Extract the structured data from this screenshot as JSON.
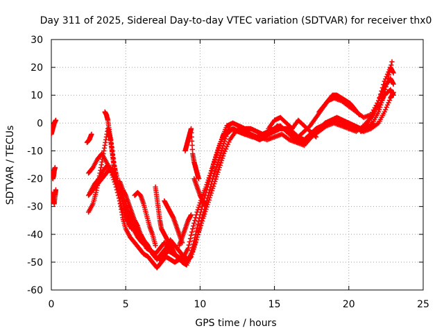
{
  "chart_data": {
    "type": "scatter",
    "title": "Day 311 of 2025, Sidereal Day-to-day VTEC variation (SDTVAR) for receiver thx0",
    "xlabel": "GPS time / hours",
    "ylabel": "SDTVAR / TECUs",
    "xlim": [
      0,
      25
    ],
    "ylim": [
      -60,
      30
    ],
    "xticks": [
      0,
      5,
      10,
      15,
      20,
      25
    ],
    "yticks": [
      -60,
      -50,
      -40,
      -30,
      -20,
      -10,
      0,
      10,
      20,
      30
    ],
    "grid": true,
    "marker": "plus",
    "color": "#ff0000",
    "series": [
      {
        "x": [
          0.0,
          0.1,
          0.2,
          0.3
        ],
        "y": [
          -4,
          -2,
          0,
          1
        ]
      },
      {
        "x": [
          0.0,
          0.1,
          0.15,
          0.2,
          0.25
        ],
        "y": [
          -18,
          -20,
          -19,
          -17,
          -16
        ]
      },
      {
        "x": [
          0.0,
          0.1,
          0.2,
          0.25,
          0.3
        ],
        "y": [
          -25,
          -27,
          -29,
          -26,
          -24
        ]
      },
      {
        "x": [
          2.4,
          2.55,
          2.7
        ],
        "y": [
          -7,
          -6,
          -4
        ]
      },
      {
        "x": [
          2.5,
          2.8,
          3.0,
          3.2,
          3.4,
          3.6,
          3.8,
          4.0,
          4.2,
          4.4,
          4.6,
          4.8,
          5.0,
          5.3,
          5.6,
          5.9,
          6.2,
          6.5,
          6.8,
          7.1,
          7.4,
          7.7,
          8.0,
          8.3,
          8.6,
          8.9,
          9.2,
          9.5,
          9.8,
          10.1,
          10.4,
          10.7,
          11.0,
          11.3,
          11.6,
          12.0,
          12.5,
          13.0,
          13.5,
          14.0,
          14.5,
          15.0,
          15.5,
          16.0,
          16.5,
          17.0,
          17.5,
          18.0,
          18.5,
          19.0,
          19.5,
          20.0,
          20.5,
          21.0,
          21.5,
          22.0,
          22.4,
          22.8,
          23.0
        ],
        "y": [
          -32,
          -29,
          -25,
          -20,
          -14,
          -8,
          -2,
          -6,
          -14,
          -22,
          -28,
          -34,
          -38,
          -41,
          -43,
          -45,
          -47,
          -48,
          -50,
          -52,
          -50,
          -48,
          -49,
          -50,
          -49,
          -48,
          -45,
          -38,
          -32,
          -27,
          -23,
          -18,
          -13,
          -8,
          -4,
          -2,
          -3,
          -4,
          -5,
          -5,
          -6,
          -5,
          -4,
          -6,
          -7,
          -8,
          -5,
          -3,
          -1,
          0,
          -1,
          -2,
          -3,
          -1,
          2,
          6,
          10,
          12,
          10
        ]
      },
      {
        "x": [
          2.5,
          2.8,
          3.1,
          3.4,
          3.7,
          4.0,
          4.3,
          4.6,
          4.9,
          5.2,
          5.5,
          5.8,
          6.1,
          6.4,
          6.7,
          7.0,
          7.3,
          7.6,
          7.9,
          8.2,
          8.5,
          8.8,
          9.1,
          9.4,
          9.7,
          10.0,
          10.3,
          10.6,
          10.9,
          11.2,
          11.5,
          11.8,
          12.2,
          12.6,
          13.0,
          13.4,
          13.8,
          14.2,
          14.6,
          15.0,
          15.4,
          15.8,
          16.2,
          16.6,
          17.0,
          17.4,
          17.8,
          18.2,
          18.6,
          19.0,
          19.5,
          20.0,
          20.5,
          21.0,
          21.5,
          22.0,
          22.4,
          22.8,
          23.0
        ],
        "y": [
          -18,
          -16,
          -13,
          -11,
          -14,
          -17,
          -22,
          -28,
          -33,
          -36,
          -38,
          -41,
          -43,
          -44,
          -46,
          -48,
          -49,
          -47,
          -46,
          -47,
          -48,
          -50,
          -51,
          -47,
          -40,
          -33,
          -27,
          -21,
          -15,
          -10,
          -5,
          -1,
          0,
          -1,
          -2,
          -2,
          -3,
          -4,
          -3,
          -2,
          -1,
          -3,
          -4,
          -5,
          -3,
          -1,
          2,
          5,
          8,
          9,
          8,
          6,
          4,
          2,
          3,
          8,
          15,
          20,
          18
        ]
      },
      {
        "x": [
          2.6,
          2.9,
          3.2,
          3.5,
          3.8,
          4.1,
          4.4,
          4.7,
          5.0,
          5.3,
          5.6,
          5.9,
          6.2,
          6.5,
          6.8,
          7.1,
          7.4,
          7.7,
          8.0,
          8.3,
          8.6,
          8.9,
          9.2,
          9.5,
          9.8,
          10.1,
          10.4,
          10.7,
          11.0,
          11.3,
          11.6,
          12.0,
          12.4,
          12.8,
          13.2,
          13.6,
          14.0,
          14.4,
          14.8,
          15.2,
          15.6,
          16.0,
          16.4,
          16.8,
          17.2,
          17.6,
          18.0,
          18.4,
          18.8,
          19.2,
          19.6,
          20.0,
          20.4,
          20.8,
          21.2,
          21.6,
          22.0,
          22.4,
          22.8,
          23.0
        ],
        "y": [
          -25,
          -22,
          -20,
          -17,
          -15,
          -18,
          -21,
          -25,
          -29,
          -33,
          -36,
          -39,
          -42,
          -44,
          -47,
          -49,
          -47,
          -45,
          -42,
          -44,
          -46,
          -48,
          -49,
          -46,
          -41,
          -36,
          -31,
          -26,
          -21,
          -16,
          -11,
          -6,
          -3,
          -2,
          -3,
          -5,
          -6,
          -5,
          -3,
          -1,
          -2,
          -4,
          -6,
          -7,
          -6,
          -4,
          -2,
          0,
          1,
          2,
          1,
          0,
          -1,
          -2,
          -1,
          3,
          8,
          13,
          16,
          14
        ]
      },
      {
        "x": [
          2.5,
          2.8,
          3.1,
          3.4,
          3.7,
          4.0,
          4.3,
          4.6,
          4.9,
          5.2,
          5.5,
          5.8,
          6.1,
          6.4,
          6.7,
          7.0,
          7.3,
          7.6,
          7.9,
          8.2,
          8.5,
          8.8,
          9.1,
          9.4,
          9.7,
          10.0,
          10.3,
          10.6,
          10.9,
          11.2,
          11.5,
          11.8,
          12.2,
          12.6,
          13.0,
          13.4,
          13.8,
          14.2,
          14.6,
          15.0,
          15.4,
          15.8,
          16.2,
          16.6,
          17.0,
          17.4,
          17.8,
          18.2,
          18.6,
          19.0,
          19.5,
          20.0,
          20.5,
          21.0,
          21.5,
          22.0,
          22.4,
          22.8,
          23.0
        ],
        "y": [
          -26,
          -24,
          -22,
          -20,
          -18,
          -16,
          -20,
          -25,
          -30,
          -34,
          -37,
          -40,
          -42,
          -45,
          -46,
          -47,
          -45,
          -43,
          -45,
          -47,
          -48,
          -49,
          -50,
          -48,
          -43,
          -37,
          -31,
          -25,
          -19,
          -14,
          -9,
          -4,
          -2,
          -3,
          -4,
          -4,
          -5,
          -5,
          -4,
          -3,
          -2,
          -2,
          -3,
          -5,
          -6,
          -4,
          -2,
          -1,
          0,
          1,
          0,
          -1,
          -2,
          -3,
          -2,
          0,
          4,
          9,
          11
        ]
      },
      {
        "x": [
          3.6,
          3.7,
          3.8,
          3.9,
          4.0,
          4.1,
          4.2,
          4.4,
          4.6,
          4.8,
          5.0,
          5.2,
          5.4
        ],
        "y": [
          4,
          3,
          1,
          -3,
          -7,
          -11,
          -15,
          -19,
          -24,
          -28,
          -33,
          -36,
          -38
        ]
      },
      {
        "x": [
          4.6,
          4.8,
          5.0,
          5.2,
          5.4,
          5.6,
          5.8,
          6.0,
          6.2
        ],
        "y": [
          -21,
          -24,
          -26,
          -29,
          -32,
          -35,
          -37,
          -40,
          -42
        ]
      },
      {
        "x": [
          5.6,
          5.8,
          6.0,
          6.2,
          6.4,
          6.6,
          6.8,
          7.0
        ],
        "y": [
          -26,
          -25,
          -26,
          -29,
          -33,
          -37,
          -40,
          -44
        ]
      },
      {
        "x": [
          7.0,
          7.1,
          7.2,
          7.3,
          7.4,
          7.6,
          7.8,
          8.0,
          8.2,
          8.4
        ],
        "y": [
          -23,
          -27,
          -31,
          -35,
          -38,
          -40,
          -42,
          -44,
          -46,
          -48
        ]
      },
      {
        "x": [
          7.6,
          7.8,
          8.0,
          8.2,
          8.4,
          8.6,
          8.8
        ],
        "y": [
          -28,
          -30,
          -32,
          -34,
          -37,
          -40,
          -43
        ]
      },
      {
        "x": [
          8.6,
          8.8,
          9.0,
          9.2,
          9.4
        ],
        "y": [
          -44,
          -41,
          -38,
          -35,
          -33
        ]
      },
      {
        "x": [
          9.0,
          9.1,
          9.2,
          9.3,
          9.4,
          9.5,
          9.6,
          9.7,
          9.8,
          9.9
        ],
        "y": [
          -10,
          -8,
          -6,
          -4,
          -2,
          -11,
          -14,
          -16,
          -18,
          -20
        ]
      },
      {
        "x": [
          9.6,
          9.8,
          10.0,
          10.2,
          10.4
        ],
        "y": [
          -20,
          -23,
          -26,
          -28,
          -30
        ]
      },
      {
        "x": [
          14.6,
          15.0,
          15.4,
          15.8,
          16.2,
          16.6,
          17.0,
          17.4,
          17.8
        ],
        "y": [
          -2,
          1,
          2,
          0,
          -2,
          1,
          -1,
          -3,
          -5
        ]
      },
      {
        "x": [
          18.0,
          18.3,
          18.6,
          18.9,
          19.2,
          19.5,
          19.8,
          20.1,
          20.4,
          20.7
        ],
        "y": [
          4,
          6,
          8,
          10,
          10,
          9,
          8,
          7,
          5,
          3
        ]
      },
      {
        "x": [
          20.8,
          21.2,
          21.6,
          22.0,
          22.3,
          22.6,
          22.9
        ],
        "y": [
          -3,
          -2,
          0,
          4,
          9,
          15,
          22
        ]
      }
    ]
  }
}
